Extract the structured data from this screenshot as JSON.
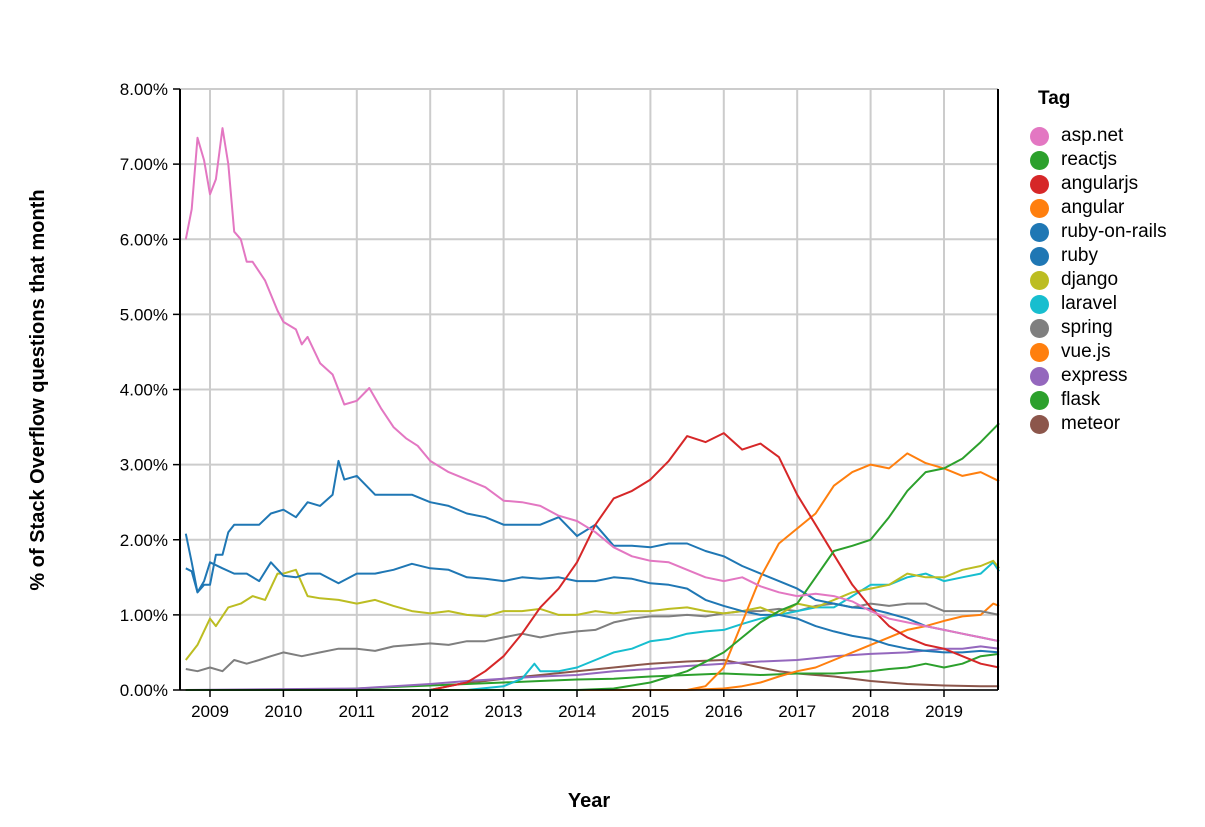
{
  "chart_data": {
    "type": "line",
    "title": "",
    "xlabel": "Year",
    "ylabel": "% of Stack Overflow questions that month",
    "xlim": [
      2008.65,
      2019.75
    ],
    "ylim": [
      0,
      8
    ],
    "x_ticks": [
      "2009",
      "2010",
      "2011",
      "2012",
      "2013",
      "2014",
      "2015",
      "2016",
      "2017",
      "2018",
      "2019"
    ],
    "y_ticks": [
      "0.00%",
      "1.00%",
      "2.00%",
      "3.00%",
      "4.00%",
      "5.00%",
      "6.00%",
      "7.00%",
      "8.00%"
    ],
    "grid": true,
    "legend_title": "Tag",
    "legend_position": "right",
    "series": [
      {
        "name": "asp.net",
        "color": "#e377c2",
        "x": [
          2008.67,
          2008.75,
          2008.83,
          2008.92,
          2009.0,
          2009.08,
          2009.17,
          2009.25,
          2009.33,
          2009.42,
          2009.5,
          2009.58,
          2009.75,
          2009.92,
          2010.0,
          2010.17,
          2010.25,
          2010.33,
          2010.5,
          2010.67,
          2010.83,
          2011.0,
          2011.17,
          2011.33,
          2011.5,
          2011.67,
          2011.83,
          2012.0,
          2012.25,
          2012.5,
          2012.75,
          2013.0,
          2013.25,
          2013.5,
          2013.75,
          2014.0,
          2014.25,
          2014.5,
          2014.75,
          2015.0,
          2015.25,
          2015.5,
          2015.75,
          2016.0,
          2016.25,
          2016.5,
          2016.75,
          2017.0,
          2017.25,
          2017.5,
          2017.75,
          2018.0,
          2018.25,
          2018.5,
          2018.75,
          2019.0,
          2019.25,
          2019.5,
          2019.75
        ],
        "y": [
          6.0,
          6.4,
          7.35,
          7.05,
          6.6,
          6.8,
          7.48,
          7.0,
          6.1,
          6.0,
          5.7,
          5.7,
          5.45,
          5.05,
          4.9,
          4.8,
          4.6,
          4.7,
          4.35,
          4.2,
          3.8,
          3.85,
          4.02,
          3.75,
          3.5,
          3.35,
          3.25,
          3.05,
          2.9,
          2.8,
          2.7,
          2.52,
          2.5,
          2.45,
          2.32,
          2.25,
          2.1,
          1.9,
          1.78,
          1.72,
          1.7,
          1.6,
          1.5,
          1.45,
          1.5,
          1.38,
          1.3,
          1.25,
          1.28,
          1.25,
          1.18,
          1.05,
          0.95,
          0.9,
          0.85,
          0.8,
          0.75,
          0.7,
          0.65
        ]
      },
      {
        "name": "reactjs",
        "color": "#2ca02c",
        "x": [
          2008.67,
          2013.0,
          2013.5,
          2014.0,
          2014.5,
          2015.0,
          2015.5,
          2016.0,
          2016.25,
          2016.5,
          2016.75,
          2017.0,
          2017.25,
          2017.5,
          2017.75,
          2018.0,
          2018.25,
          2018.5,
          2018.75,
          2019.0,
          2019.25,
          2019.5,
          2019.75
        ],
        "y": [
          0.0,
          0.0,
          0.0,
          0.0,
          0.02,
          0.1,
          0.25,
          0.5,
          0.7,
          0.9,
          1.05,
          1.15,
          1.5,
          1.85,
          1.92,
          2.0,
          2.3,
          2.65,
          2.9,
          2.95,
          3.08,
          3.3,
          3.55
        ]
      },
      {
        "name": "angularjs",
        "color": "#d62728",
        "x": [
          2008.67,
          2012.0,
          2012.5,
          2012.75,
          2013.0,
          2013.25,
          2013.5,
          2013.75,
          2014.0,
          2014.25,
          2014.5,
          2014.75,
          2015.0,
          2015.25,
          2015.5,
          2015.75,
          2016.0,
          2016.25,
          2016.5,
          2016.75,
          2017.0,
          2017.25,
          2017.5,
          2017.75,
          2018.0,
          2018.25,
          2018.5,
          2018.75,
          2019.0,
          2019.25,
          2019.5,
          2019.75
        ],
        "y": [
          0.0,
          0.0,
          0.1,
          0.25,
          0.45,
          0.75,
          1.1,
          1.35,
          1.7,
          2.2,
          2.55,
          2.65,
          2.8,
          3.05,
          3.38,
          3.3,
          3.42,
          3.2,
          3.28,
          3.1,
          2.6,
          2.2,
          1.8,
          1.4,
          1.1,
          0.85,
          0.7,
          0.6,
          0.55,
          0.45,
          0.35,
          0.3
        ]
      },
      {
        "name": "angular",
        "color": "#ff7f0e",
        "x": [
          2008.67,
          2015.5,
          2015.75,
          2016.0,
          2016.25,
          2016.5,
          2016.75,
          2017.0,
          2017.25,
          2017.5,
          2017.75,
          2018.0,
          2018.25,
          2018.5,
          2018.75,
          2019.0,
          2019.25,
          2019.5,
          2019.75
        ],
        "y": [
          0.0,
          0.0,
          0.05,
          0.3,
          0.9,
          1.5,
          1.95,
          2.15,
          2.35,
          2.72,
          2.9,
          3.0,
          2.95,
          3.15,
          3.02,
          2.95,
          2.85,
          2.9,
          2.78
        ]
      },
      {
        "name": "ruby-on-rails",
        "color": "#1f77b4",
        "x": [
          2008.67,
          2008.75,
          2008.83,
          2008.92,
          2009.0,
          2009.08,
          2009.17,
          2009.25,
          2009.33,
          2009.5,
          2009.67,
          2009.83,
          2010.0,
          2010.17,
          2010.33,
          2010.5,
          2010.67,
          2010.75,
          2010.83,
          2011.0,
          2011.25,
          2011.5,
          2011.75,
          2012.0,
          2012.25,
          2012.5,
          2012.75,
          2013.0,
          2013.25,
          2013.5,
          2013.75,
          2014.0,
          2014.25,
          2014.5,
          2014.75,
          2015.0,
          2015.25,
          2015.5,
          2015.75,
          2016.0,
          2016.25,
          2016.5,
          2016.75,
          2017.0,
          2017.25,
          2017.5,
          2017.75,
          2018.0,
          2018.25,
          2018.5,
          2018.75,
          2019.0,
          2019.25,
          2019.5,
          2019.75
        ],
        "y": [
          2.08,
          1.7,
          1.3,
          1.4,
          1.4,
          1.8,
          1.8,
          2.1,
          2.2,
          2.2,
          2.2,
          2.35,
          2.4,
          2.3,
          2.5,
          2.45,
          2.6,
          3.05,
          2.8,
          2.85,
          2.6,
          2.6,
          2.6,
          2.5,
          2.45,
          2.35,
          2.3,
          2.2,
          2.2,
          2.2,
          2.3,
          2.05,
          2.2,
          1.92,
          1.92,
          1.9,
          1.95,
          1.95,
          1.85,
          1.78,
          1.65,
          1.55,
          1.45,
          1.35,
          1.2,
          1.15,
          1.1,
          1.08,
          1.02,
          0.95,
          0.85,
          0.8,
          0.75,
          0.7,
          0.65
        ]
      },
      {
        "name": "ruby",
        "color": "#1f77b4",
        "x": [
          2008.67,
          2008.75,
          2008.83,
          2008.92,
          2009.0,
          2009.17,
          2009.33,
          2009.5,
          2009.67,
          2009.83,
          2010.0,
          2010.17,
          2010.33,
          2010.5,
          2010.75,
          2011.0,
          2011.25,
          2011.5,
          2011.75,
          2012.0,
          2012.25,
          2012.5,
          2012.75,
          2013.0,
          2013.25,
          2013.5,
          2013.75,
          2014.0,
          2014.25,
          2014.5,
          2014.75,
          2015.0,
          2015.25,
          2015.5,
          2015.75,
          2016.0,
          2016.25,
          2016.5,
          2016.75,
          2017.0,
          2017.25,
          2017.5,
          2017.75,
          2018.0,
          2018.25,
          2018.5,
          2018.75,
          2019.0,
          2019.25,
          2019.5,
          2019.75
        ],
        "y": [
          1.62,
          1.58,
          1.3,
          1.45,
          1.7,
          1.62,
          1.55,
          1.55,
          1.45,
          1.7,
          1.52,
          1.5,
          1.55,
          1.55,
          1.42,
          1.55,
          1.55,
          1.6,
          1.68,
          1.62,
          1.6,
          1.5,
          1.48,
          1.45,
          1.5,
          1.48,
          1.5,
          1.45,
          1.45,
          1.5,
          1.48,
          1.42,
          1.4,
          1.35,
          1.2,
          1.12,
          1.05,
          1.0,
          1.0,
          0.95,
          0.85,
          0.78,
          0.72,
          0.68,
          0.6,
          0.55,
          0.52,
          0.5,
          0.5,
          0.52,
          0.5
        ]
      },
      {
        "name": "django",
        "color": "#bcbd22",
        "x": [
          2008.67,
          2008.83,
          2009.0,
          2009.08,
          2009.25,
          2009.42,
          2009.58,
          2009.75,
          2009.92,
          2010.0,
          2010.17,
          2010.33,
          2010.5,
          2010.75,
          2011.0,
          2011.25,
          2011.5,
          2011.75,
          2012.0,
          2012.25,
          2012.5,
          2012.75,
          2013.0,
          2013.25,
          2013.5,
          2013.75,
          2014.0,
          2014.25,
          2014.5,
          2014.75,
          2015.0,
          2015.25,
          2015.5,
          2015.75,
          2016.0,
          2016.25,
          2016.5,
          2016.75,
          2017.0,
          2017.25,
          2017.5,
          2017.75,
          2018.0,
          2018.25,
          2018.5,
          2018.75,
          2019.0,
          2019.25,
          2019.5,
          2019.67,
          2019.75
        ],
        "y": [
          0.4,
          0.6,
          0.95,
          0.85,
          1.1,
          1.15,
          1.25,
          1.2,
          1.55,
          1.55,
          1.6,
          1.25,
          1.22,
          1.2,
          1.15,
          1.2,
          1.12,
          1.05,
          1.02,
          1.05,
          1.0,
          0.98,
          1.05,
          1.05,
          1.08,
          1.0,
          1.0,
          1.05,
          1.02,
          1.05,
          1.05,
          1.08,
          1.1,
          1.05,
          1.02,
          1.05,
          1.1,
          1.0,
          1.15,
          1.1,
          1.2,
          1.3,
          1.35,
          1.4,
          1.55,
          1.5,
          1.5,
          1.6,
          1.65,
          1.72,
          1.62
        ]
      },
      {
        "name": "laravel",
        "color": "#17becf",
        "x": [
          2008.67,
          2012.5,
          2013.0,
          2013.25,
          2013.42,
          2013.5,
          2013.75,
          2014.0,
          2014.25,
          2014.5,
          2014.75,
          2015.0,
          2015.25,
          2015.5,
          2015.75,
          2016.0,
          2016.25,
          2016.5,
          2016.75,
          2017.0,
          2017.25,
          2017.5,
          2017.75,
          2018.0,
          2018.25,
          2018.5,
          2018.75,
          2019.0,
          2019.25,
          2019.5,
          2019.67,
          2019.75
        ],
        "y": [
          0.0,
          0.0,
          0.05,
          0.15,
          0.35,
          0.25,
          0.25,
          0.3,
          0.4,
          0.5,
          0.55,
          0.65,
          0.68,
          0.75,
          0.78,
          0.8,
          0.88,
          0.95,
          1.0,
          1.05,
          1.1,
          1.1,
          1.25,
          1.4,
          1.4,
          1.5,
          1.55,
          1.45,
          1.5,
          1.55,
          1.7,
          1.58
        ]
      },
      {
        "name": "spring",
        "color": "#7f7f7f",
        "x": [
          2008.67,
          2008.83,
          2009.0,
          2009.17,
          2009.33,
          2009.5,
          2009.67,
          2009.83,
          2010.0,
          2010.25,
          2010.5,
          2010.75,
          2011.0,
          2011.25,
          2011.5,
          2011.75,
          2012.0,
          2012.25,
          2012.5,
          2012.75,
          2013.0,
          2013.25,
          2013.5,
          2013.75,
          2014.0,
          2014.25,
          2014.5,
          2014.75,
          2015.0,
          2015.25,
          2015.5,
          2015.75,
          2016.0,
          2016.25,
          2016.5,
          2016.75,
          2017.0,
          2017.25,
          2017.5,
          2017.75,
          2018.0,
          2018.25,
          2018.5,
          2018.75,
          2019.0,
          2019.25,
          2019.5,
          2019.75
        ],
        "y": [
          0.28,
          0.25,
          0.3,
          0.25,
          0.4,
          0.35,
          0.4,
          0.45,
          0.5,
          0.45,
          0.5,
          0.55,
          0.55,
          0.52,
          0.58,
          0.6,
          0.62,
          0.6,
          0.65,
          0.65,
          0.7,
          0.75,
          0.7,
          0.75,
          0.78,
          0.8,
          0.9,
          0.95,
          0.98,
          0.98,
          1.0,
          0.98,
          1.02,
          1.05,
          1.05,
          1.08,
          1.05,
          1.12,
          1.15,
          1.1,
          1.15,
          1.12,
          1.15,
          1.15,
          1.05,
          1.05,
          1.05,
          1.0
        ]
      },
      {
        "name": "vue.js",
        "color": "#ff7f0e",
        "x": [
          2008.67,
          2015.5,
          2016.0,
          2016.25,
          2016.5,
          2016.75,
          2017.0,
          2017.25,
          2017.5,
          2017.75,
          2018.0,
          2018.25,
          2018.5,
          2018.75,
          2019.0,
          2019.25,
          2019.5,
          2019.67,
          2019.75
        ],
        "y": [
          0.0,
          0.0,
          0.02,
          0.05,
          0.1,
          0.18,
          0.25,
          0.3,
          0.4,
          0.5,
          0.6,
          0.7,
          0.8,
          0.85,
          0.92,
          0.98,
          1.0,
          1.15,
          1.12
        ]
      },
      {
        "name": "express",
        "color": "#9467bd",
        "x": [
          2008.67,
          2011.0,
          2011.5,
          2012.0,
          2012.5,
          2013.0,
          2013.5,
          2014.0,
          2014.5,
          2015.0,
          2015.5,
          2016.0,
          2016.5,
          2017.0,
          2017.5,
          2018.0,
          2018.5,
          2019.0,
          2019.25,
          2019.5,
          2019.75
        ],
        "y": [
          0.0,
          0.02,
          0.05,
          0.08,
          0.12,
          0.15,
          0.18,
          0.2,
          0.25,
          0.28,
          0.32,
          0.35,
          0.38,
          0.4,
          0.45,
          0.48,
          0.5,
          0.55,
          0.55,
          0.58,
          0.55
        ]
      },
      {
        "name": "flask",
        "color": "#2ca02c",
        "x": [
          2008.67,
          2010.5,
          2011.0,
          2011.5,
          2012.0,
          2012.5,
          2013.0,
          2013.5,
          2014.0,
          2014.5,
          2015.0,
          2015.5,
          2016.0,
          2016.5,
          2017.0,
          2017.5,
          2018.0,
          2018.25,
          2018.5,
          2018.75,
          2019.0,
          2019.25,
          2019.5,
          2019.75
        ],
        "y": [
          0.0,
          0.0,
          0.02,
          0.04,
          0.06,
          0.08,
          0.1,
          0.12,
          0.14,
          0.15,
          0.18,
          0.2,
          0.22,
          0.2,
          0.22,
          0.22,
          0.25,
          0.28,
          0.3,
          0.35,
          0.3,
          0.35,
          0.45,
          0.48
        ]
      },
      {
        "name": "meteor",
        "color": "#8c564b",
        "x": [
          2008.67,
          2012.0,
          2012.25,
          2012.5,
          2012.75,
          2013.0,
          2013.5,
          2014.0,
          2014.5,
          2015.0,
          2015.5,
          2016.0,
          2016.25,
          2016.5,
          2016.75,
          2017.0,
          2017.5,
          2018.0,
          2018.5,
          2019.0,
          2019.5,
          2019.75
        ],
        "y": [
          0.0,
          0.0,
          0.05,
          0.1,
          0.12,
          0.15,
          0.2,
          0.25,
          0.3,
          0.35,
          0.38,
          0.4,
          0.35,
          0.3,
          0.25,
          0.22,
          0.18,
          0.12,
          0.08,
          0.06,
          0.05,
          0.05
        ]
      }
    ]
  }
}
